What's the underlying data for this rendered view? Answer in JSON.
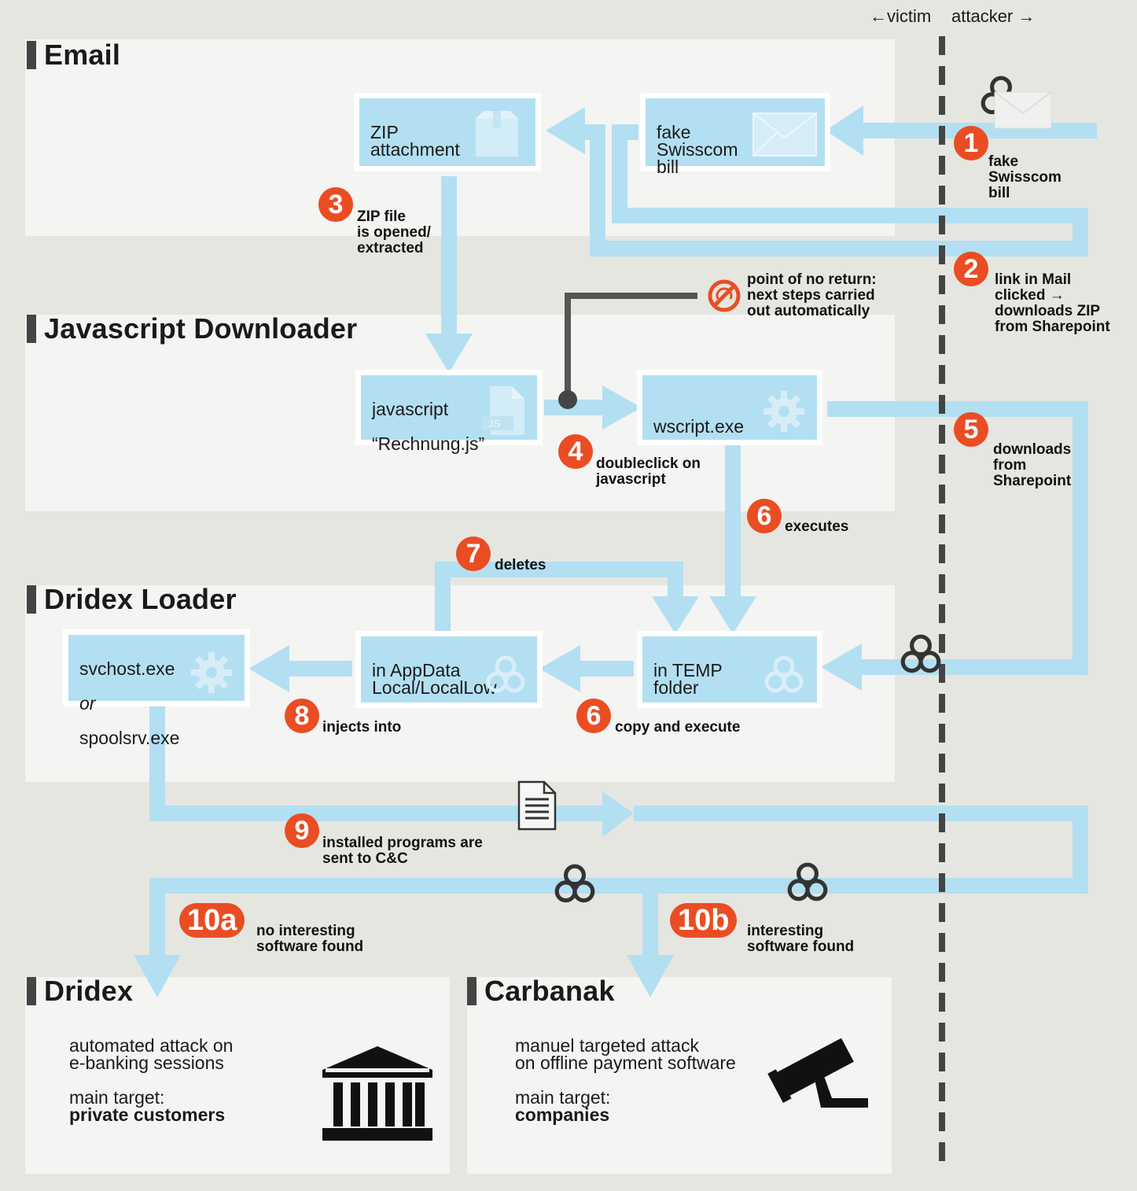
{
  "header": {
    "victim": "←victim",
    "attacker": "attacker →"
  },
  "sections": {
    "email": "Email",
    "js_downloader": "Javascript Downloader",
    "dridex_loader": "Dridex Loader",
    "dridex": "Dridex",
    "carbanak": "Carbanak"
  },
  "boxes": {
    "zip": "ZIP\nattachment",
    "bill": "fake\nSwisscom\nbill",
    "js_line1": "javascript",
    "js_line2": "“Rechnung.js”",
    "js_badge": "JS",
    "wscript": "wscript.exe",
    "svchost_line1": "svchost.exe",
    "svchost_or": "or",
    "svchost_line2": "spoolsrv.exe",
    "appdata": "in AppData\nLocal/LocalLow",
    "temp": "in TEMP\nfolder"
  },
  "steps": {
    "s1": {
      "num": "1",
      "label": "fake\nSwisscom\nbill"
    },
    "s2": {
      "num": "2",
      "label": "link in Mail\nclicked →\ndownloads ZIP\nfrom Sharepoint"
    },
    "s3": {
      "num": "3",
      "label": "ZIP file\nis opened/\nextracted"
    },
    "s4": {
      "num": "4",
      "label": "doubleclick on\njavascript"
    },
    "s5": {
      "num": "5",
      "label": "downloads\nfrom\nSharepoint"
    },
    "s6a": {
      "num": "6",
      "label": "executes"
    },
    "s6b": {
      "num": "6",
      "label": "copy and execute"
    },
    "s7": {
      "num": "7",
      "label": "deletes"
    },
    "s8": {
      "num": "8",
      "label": "injects into"
    },
    "s9": {
      "num": "9",
      "label": "installed programs are\nsent to C&C"
    },
    "s10a": {
      "num": "10a",
      "label": "no interesting\nsoftware found"
    },
    "s10b": {
      "num": "10b",
      "label": "interesting\nsoftware found"
    }
  },
  "no_return": "point of no return:\nnext steps carried\nout automatically",
  "dridex": {
    "desc": "automated attack on\ne-banking sessions",
    "target_label": "main target:",
    "target": "private customers"
  },
  "carbanak": {
    "desc": "manuel targeted attack\non offline payment software",
    "target_label": "main target:",
    "target": "companies"
  },
  "colors": {
    "flow": "#b3dff2",
    "badge": "#ea4d23",
    "panel": "#f4f4f2",
    "bg": "#e6e6e1"
  },
  "icons": [
    "biohazard-icon",
    "envelope-icon",
    "gear-icon",
    "document-icon",
    "bank-icon",
    "camera-icon",
    "no-return-icon",
    "box-icon",
    "js-file-icon"
  ]
}
